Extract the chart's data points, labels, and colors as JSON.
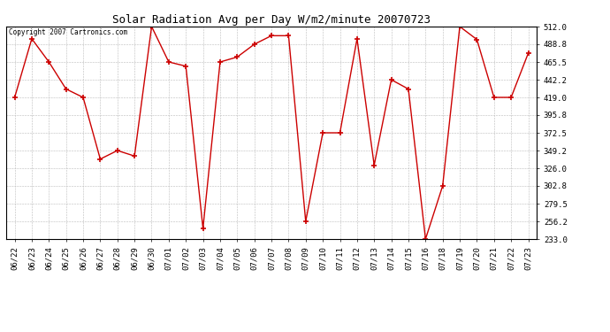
{
  "title": "Solar Radiation Avg per Day W/m2/minute 20070723",
  "copyright": "Copyright 2007 Cartronics.com",
  "labels": [
    "06/22",
    "06/23",
    "06/24",
    "06/25",
    "06/26",
    "06/27",
    "06/28",
    "06/29",
    "06/30",
    "07/01",
    "07/02",
    "07/03",
    "07/04",
    "07/05",
    "07/06",
    "07/07",
    "07/08",
    "07/09",
    "07/10",
    "07/11",
    "07/12",
    "07/13",
    "07/14",
    "07/15",
    "07/16",
    "07/18",
    "07/19",
    "07/20",
    "07/21",
    "07/22",
    "07/23"
  ],
  "values": [
    419.0,
    496.0,
    465.5,
    430.0,
    419.0,
    338.0,
    349.2,
    342.0,
    512.0,
    465.5,
    460.0,
    247.0,
    465.5,
    472.0,
    488.8,
    500.0,
    500.0,
    256.2,
    372.5,
    372.5,
    496.0,
    330.0,
    442.2,
    430.0,
    233.0,
    302.8,
    512.0,
    495.0,
    419.0,
    419.0,
    477.0
  ],
  "line_color": "#cc0000",
  "marker_color": "#cc0000",
  "bg_color": "#ffffff",
  "grid_color": "#bbbbbb",
  "ymin": 233.0,
  "ymax": 512.0,
  "yticks": [
    233.0,
    256.2,
    279.5,
    302.8,
    326.0,
    349.2,
    372.5,
    395.8,
    419.0,
    442.2,
    465.5,
    488.8,
    512.0
  ],
  "title_fontsize": 9,
  "tick_fontsize": 6.5,
  "copyright_fontsize": 5.5
}
